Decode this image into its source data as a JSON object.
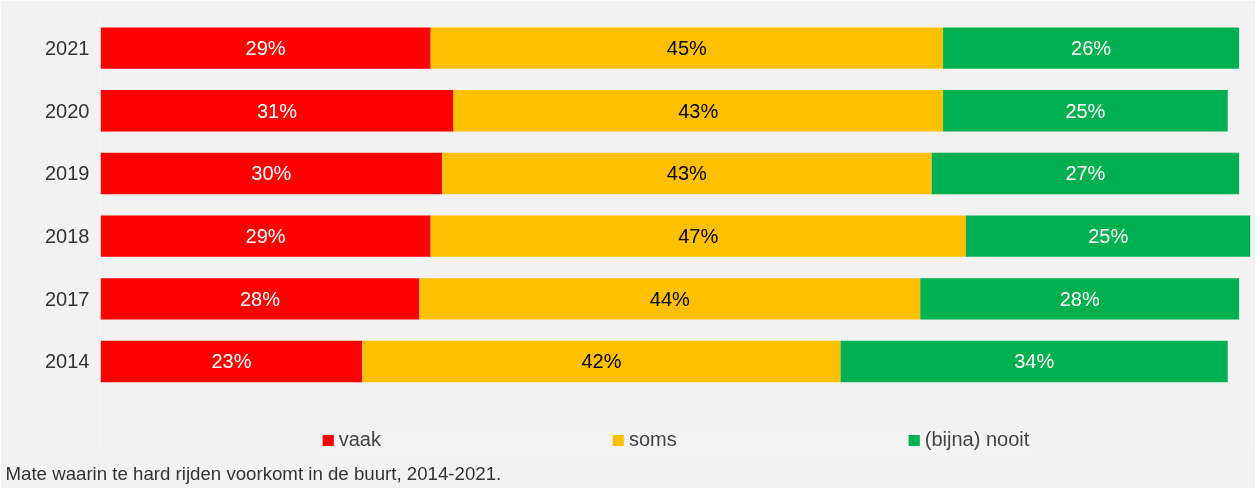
{
  "chart_data": {
    "type": "bar",
    "orientation": "horizontal",
    "stacked": true,
    "legend": "bottom",
    "categories": [
      "2021",
      "2020",
      "2019",
      "2018",
      "2017",
      "2014"
    ],
    "series": [
      {
        "name": "vaak",
        "color": "#ff0000",
        "values": [
          29,
          31,
          30,
          29,
          28,
          23
        ],
        "value_labels": [
          "29%",
          "31%",
          "30%",
          "29%",
          "28%",
          "23%"
        ]
      },
      {
        "name": "soms",
        "color": "#ffc000",
        "values": [
          45,
          43,
          43,
          47,
          44,
          42
        ],
        "value_labels": [
          "45%",
          "43%",
          "43%",
          "47%",
          "44%",
          "42%"
        ]
      },
      {
        "name": "(bijna) nooit",
        "color": "#00b050",
        "values": [
          26,
          25,
          27,
          25,
          28,
          34
        ],
        "value_labels": [
          "26%",
          "25%",
          "27%",
          "25%",
          "28%",
          "34%"
        ]
      }
    ],
    "annotations": [
      "Mate waarin te hard rijden voorkomt in de buurt, 2014-2021."
    ]
  }
}
